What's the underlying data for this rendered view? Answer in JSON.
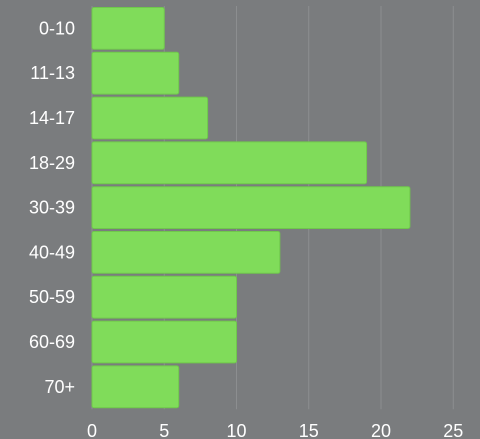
{
  "chart_data": {
    "type": "bar",
    "orientation": "horizontal",
    "categories": [
      "0-10",
      "11-13",
      "14-17",
      "18-29",
      "30-39",
      "40-49",
      "50-59",
      "60-69",
      "70+"
    ],
    "values": [
      5,
      6,
      8,
      19,
      22,
      13,
      10,
      10,
      6
    ],
    "x_ticks": [
      "0",
      "5",
      "10",
      "15",
      "20",
      "25"
    ],
    "xlim": [
      0,
      25
    ],
    "grid": true,
    "legend": "none",
    "colors": {
      "bar": "#80dc5a",
      "bar_border": "#6fc84b",
      "background": "#7a7c7e",
      "grid": "#8c8e90",
      "text": "#ffffff"
    }
  }
}
